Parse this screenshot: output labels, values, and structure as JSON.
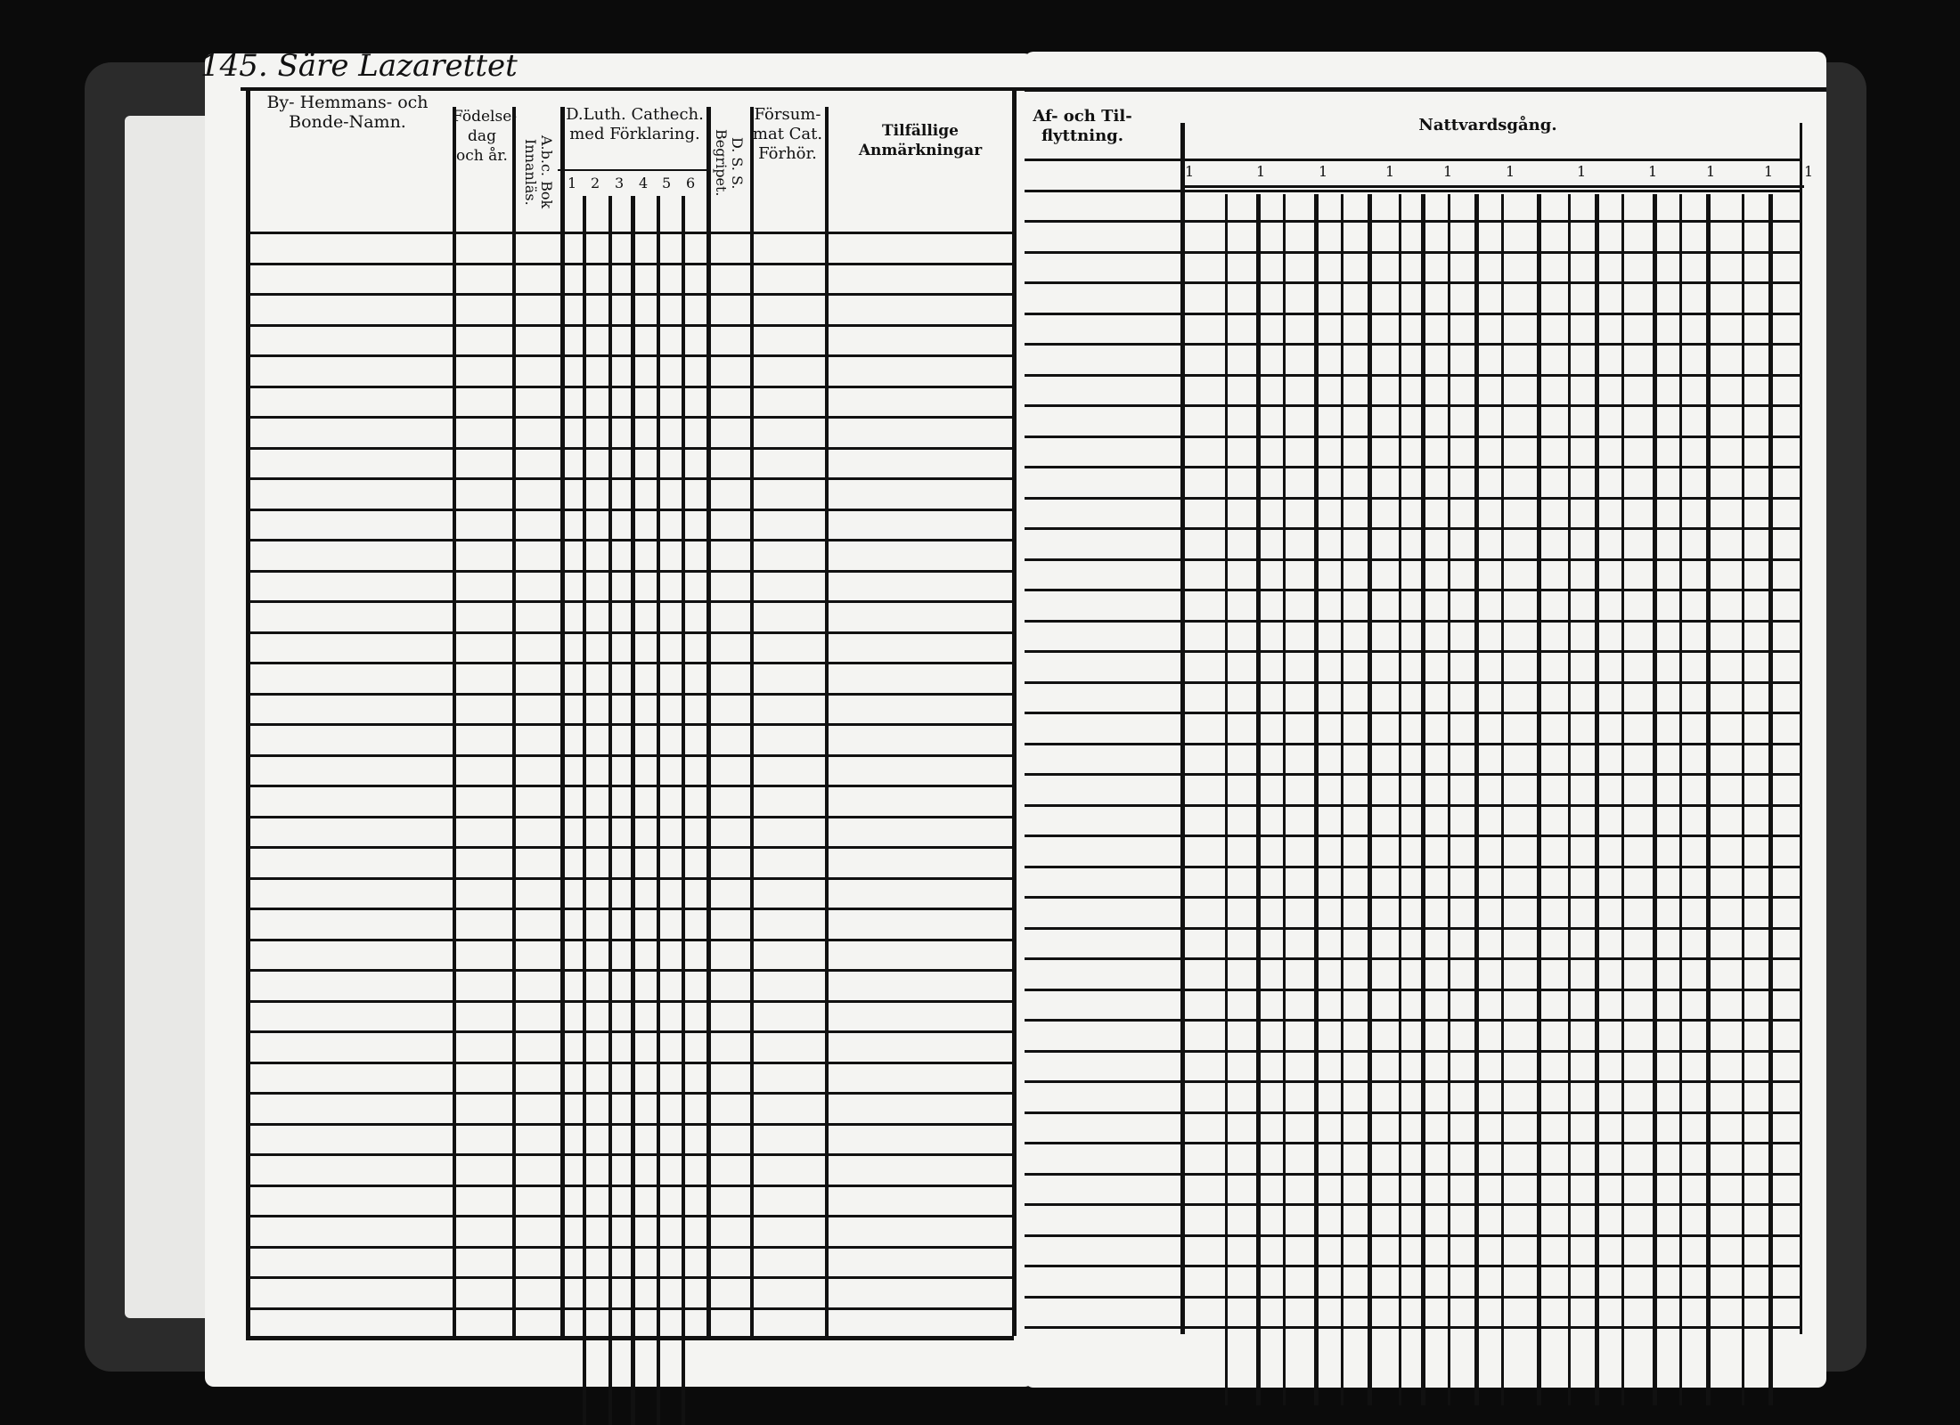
{
  "document": {
    "type": "Swedish parish examination register (husförhörslängd), two-page spread",
    "left_page": {
      "handwritten_heading": "145. Säre Lazarettet",
      "columns": [
        {
          "label": "By- Hemmans- och Bonde-Namn."
        },
        {
          "label": "Födelse-dag och år."
        },
        {
          "label": "A.b.c. Bok Innanläs.",
          "vertical": true
        },
        {
          "label": "D.Luth. Cathech. med Förklaring.",
          "sub_columns": [
            "1",
            "2",
            "3",
            "4",
            "5",
            "6"
          ]
        },
        {
          "label": "D. S. S. Begripet.",
          "vertical": true
        },
        {
          "label": "Försum-mat Cat. Förhör."
        },
        {
          "label": "Tilfällige Anmärkningar"
        }
      ]
    },
    "right_page": {
      "columns": [
        {
          "label": "Af- och Til-flyttning."
        },
        {
          "label": "Nattvardsgång."
        }
      ],
      "group_marks": [
        "1",
        "1",
        "1",
        "1",
        "1",
        "1",
        "1",
        "1",
        "1",
        "1",
        "1"
      ]
    },
    "colors": {
      "ink": "#111111",
      "paper": "#f4f4f2",
      "background": "#0b0b0b"
    }
  }
}
